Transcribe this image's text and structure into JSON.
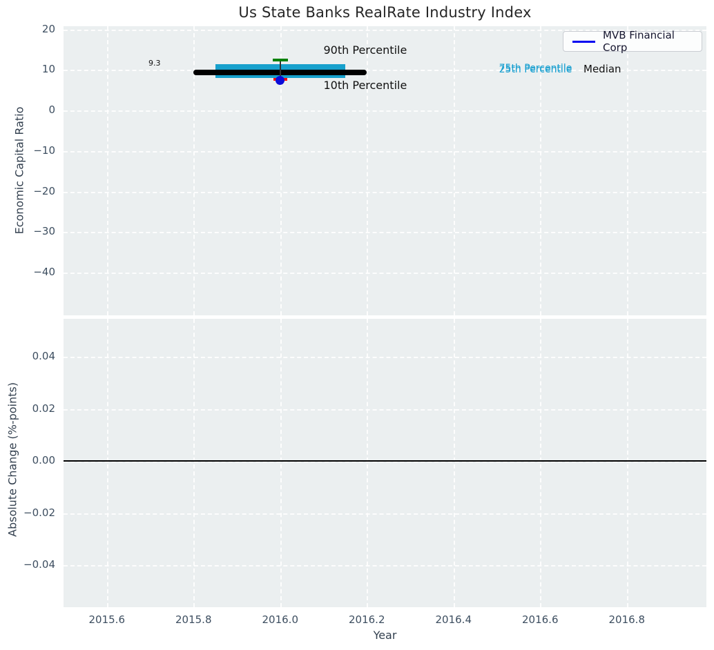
{
  "chart_data": [
    {
      "type": "scatter",
      "panel": "top",
      "title": "Us State Banks RealRate Industry Index",
      "xlabel": "Year",
      "ylabel": "Economic Capital Ratio",
      "xlim": [
        2015.5,
        2016.985
      ],
      "ylim": [
        -50.6,
        20.8
      ],
      "grid": "white-dashed",
      "background": "#ebeff0",
      "x_ticks": [
        {
          "v": 2015.6,
          "label": "2015.6"
        },
        {
          "v": 2015.8,
          "label": "2015.8"
        },
        {
          "v": 2016.0,
          "label": "2016.0"
        },
        {
          "v": 2016.2,
          "label": "2016.2"
        },
        {
          "v": 2016.4,
          "label": "2016.4"
        },
        {
          "v": 2016.6,
          "label": "2016.6"
        },
        {
          "v": 2016.8,
          "label": "2016.8"
        }
      ],
      "y_ticks": [
        {
          "v": 20,
          "label": "20"
        },
        {
          "v": 10,
          "label": "10"
        },
        {
          "v": 0,
          "label": "0"
        },
        {
          "v": -10,
          "label": "−10"
        },
        {
          "v": -20,
          "label": "−20"
        },
        {
          "v": -30,
          "label": "−30"
        },
        {
          "v": -40,
          "label": "−40"
        }
      ],
      "industry_stats": {
        "year": 2016.0,
        "median": 9.3,
        "median_label": "9.3",
        "p75": 10.4,
        "p25": 8.9,
        "p90": 12.4,
        "p10": 7.7,
        "median_span": [
          2015.8,
          2016.2
        ],
        "iqr_span": [
          2015.85,
          2016.15
        ],
        "median_color": "#000000",
        "iqr_color": "#17a0cc",
        "p90_cap_color": "#008000",
        "p10_cap_color": "#ff0000",
        "whisker_color": "#333333"
      },
      "series": [
        {
          "name": "MVB Financial Corp",
          "x": [
            2016.0
          ],
          "y": [
            7.4
          ],
          "marker": "circle",
          "color": "#0b0bd8"
        }
      ],
      "annotations": [
        {
          "text": "9.3",
          "x": 2015.71,
          "y": 11.5,
          "color": "#111111",
          "size": 11,
          "anchor": "center"
        },
        {
          "text": "90th Percentile",
          "x": 2016.1,
          "y": 14.6,
          "color": "#111111",
          "size": 16,
          "anchor": "left"
        },
        {
          "text": "10th Percentile",
          "x": 2016.1,
          "y": 6.0,
          "color": "#111111",
          "size": 16,
          "anchor": "left"
        },
        {
          "text": "75th Percentile",
          "x": 2016.505,
          "y": 10.1,
          "color": "#189fd0",
          "size": 14,
          "anchor": "left"
        },
        {
          "text": "25th Percentile",
          "x": 2016.505,
          "y": 9.7,
          "color": "#189fd0",
          "size": 14,
          "anchor": "left"
        },
        {
          "text": "Median",
          "x": 2016.7,
          "y": 9.9,
          "color": "#111111",
          "size": 15,
          "anchor": "left"
        }
      ],
      "legend": {
        "label": "MVB Financial Corp",
        "line_color": "#0000f0",
        "position": "upper right"
      }
    },
    {
      "type": "line",
      "panel": "bottom",
      "ylabel": "Absolute Change (%-points)",
      "xlabel": "Year",
      "xlim": [
        2015.5,
        2016.985
      ],
      "ylim": [
        -0.0575,
        0.0546
      ],
      "grid": "white-dashed",
      "background": "#ebeff0",
      "y_ticks": [
        {
          "v": 0.04,
          "label": "0.04"
        },
        {
          "v": 0.02,
          "label": "0.02"
        },
        {
          "v": 0.0,
          "label": "0.00"
        },
        {
          "v": -0.02,
          "label": "−0.02"
        },
        {
          "v": -0.04,
          "label": "−0.04"
        }
      ],
      "zero_line": {
        "v": 0.0,
        "color": "#000000"
      }
    }
  ]
}
